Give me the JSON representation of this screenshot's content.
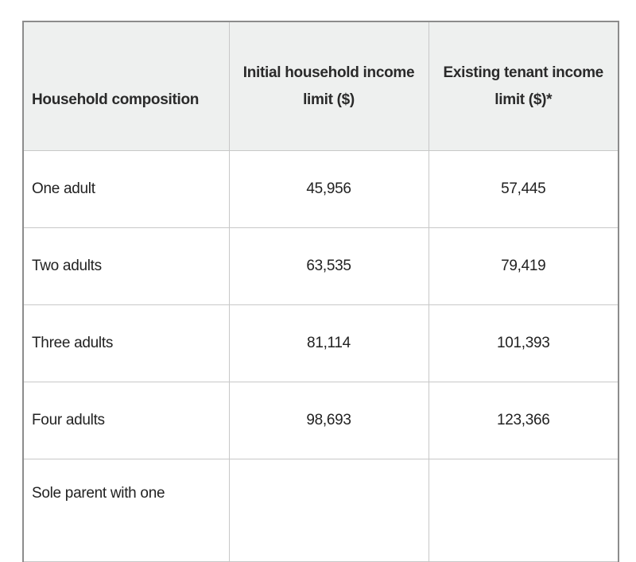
{
  "table": {
    "headers": [
      "Household composition",
      "Initial household income limit ($)",
      "Existing tenant income limit ($)*"
    ],
    "rows": [
      {
        "composition": "One adult",
        "initial": "45,956",
        "existing": "57,445"
      },
      {
        "composition": "Two adults",
        "initial": "63,535",
        "existing": "79,419"
      },
      {
        "composition": "Three adults",
        "initial": "81,114",
        "existing": "101,393"
      },
      {
        "composition": "Four adults",
        "initial": "98,693",
        "existing": "123,366"
      },
      {
        "composition": "Sole parent with one",
        "initial": "",
        "existing": ""
      }
    ]
  },
  "colors": {
    "header_bg": "#eef0ef",
    "border": "#c8c8c8",
    "outer_border": "#8c8c8c"
  }
}
